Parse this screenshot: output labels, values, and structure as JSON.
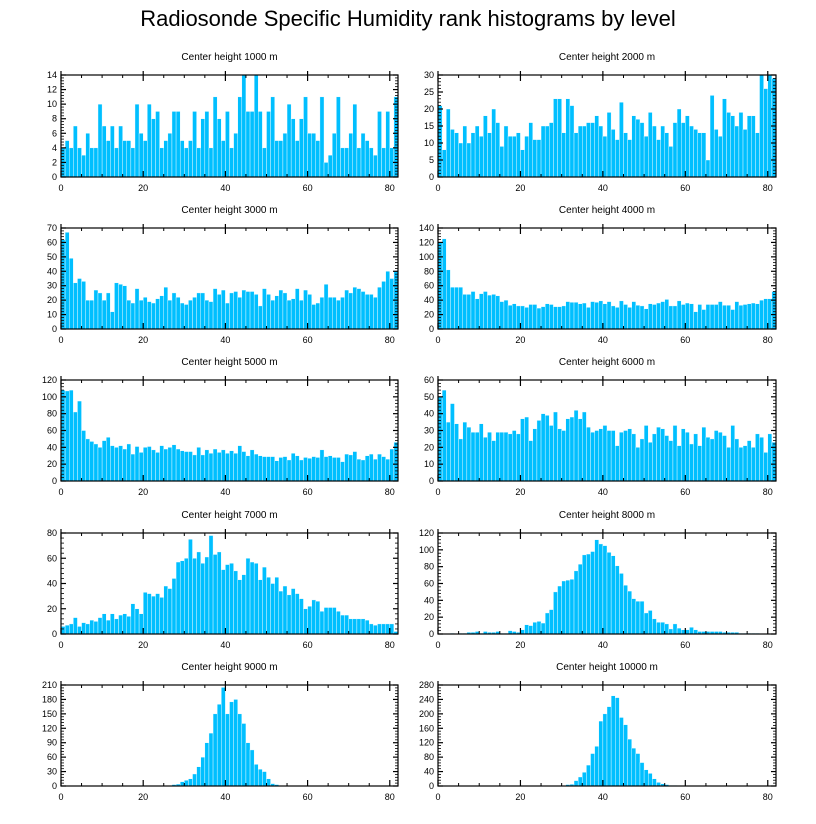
{
  "title": "Radiosonde Specific Humidity rank histograms by level",
  "colors": {
    "bar": "#00BFFF",
    "bar_edge": "#ffffff",
    "axis": "#000000"
  },
  "chart_data": [
    {
      "type": "bar",
      "title": "Center height 1000 m",
      "xlim": [
        0,
        82
      ],
      "ylim": [
        0,
        14
      ],
      "xticks": [
        0,
        20,
        40,
        60,
        80
      ],
      "yticks": [
        0,
        2,
        4,
        6,
        8,
        10,
        12,
        14
      ],
      "values": [
        4,
        5,
        4,
        7,
        4,
        3,
        6,
        4,
        4,
        10,
        7,
        5,
        7,
        4,
        7,
        5,
        5,
        4,
        10,
        6,
        5,
        10,
        8,
        9,
        4,
        5,
        6,
        9,
        9,
        5,
        4,
        5,
        9,
        4,
        8,
        9,
        4,
        11,
        8,
        5,
        9,
        4,
        6,
        11,
        14,
        9,
        9,
        14,
        9,
        4,
        9,
        11,
        5,
        5,
        6,
        10,
        8,
        5,
        8,
        11,
        6,
        6,
        5,
        11,
        2,
        3,
        6,
        11,
        4,
        4,
        6,
        10,
        4,
        6,
        5,
        4,
        3,
        9,
        4,
        9,
        4,
        11,
        11
      ]
    },
    {
      "type": "bar",
      "title": "Center height 2000 m",
      "xlim": [
        0,
        82
      ],
      "ylim": [
        0,
        30
      ],
      "xticks": [
        0,
        20,
        40,
        60,
        80
      ],
      "yticks": [
        0,
        5,
        10,
        15,
        20,
        25,
        30
      ],
      "values": [
        21,
        8,
        20,
        14,
        13,
        10,
        15,
        10,
        13,
        15,
        12,
        18,
        13,
        20,
        16,
        9,
        15,
        12,
        12,
        13,
        8,
        12,
        16,
        11,
        11,
        15,
        15,
        16,
        23,
        23,
        13,
        23,
        21,
        13,
        15,
        15,
        16,
        16,
        18,
        15,
        12,
        19,
        14,
        11,
        22,
        13,
        11,
        18,
        17,
        16,
        12,
        19,
        15,
        11,
        15,
        13,
        9,
        16,
        20,
        16,
        18,
        15,
        14,
        13,
        13,
        5,
        24,
        14,
        12,
        23,
        19,
        18,
        15,
        19,
        14,
        18,
        18,
        13,
        30,
        26,
        30,
        29
      ]
    },
    {
      "type": "bar",
      "title": "Center height 3000 m",
      "xlim": [
        0,
        82
      ],
      "ylim": [
        0,
        70
      ],
      "xticks": [
        0,
        20,
        40,
        60,
        80
      ],
      "yticks": [
        0,
        10,
        20,
        30,
        40,
        50,
        60,
        70
      ],
      "values": [
        62,
        67,
        49,
        32,
        35,
        33,
        20,
        20,
        27,
        25,
        20,
        25,
        12,
        32,
        31,
        30,
        20,
        18,
        28,
        20,
        22,
        19,
        18,
        21,
        23,
        29,
        20,
        25,
        22,
        18,
        17,
        20,
        22,
        25,
        25,
        20,
        19,
        28,
        24,
        27,
        18,
        25,
        26,
        22,
        27,
        26,
        26,
        24,
        16,
        28,
        24,
        20,
        23,
        27,
        25,
        20,
        21,
        28,
        20,
        27,
        24,
        17,
        18,
        22,
        31,
        22,
        22,
        20,
        22,
        27,
        25,
        29,
        28,
        26,
        24,
        24,
        22,
        29,
        33,
        40,
        35,
        40
      ]
    },
    {
      "type": "bar",
      "title": "Center height 4000 m",
      "xlim": [
        0,
        82
      ],
      "ylim": [
        0,
        140
      ],
      "xticks": [
        0,
        20,
        40,
        60,
        80
      ],
      "yticks": [
        0,
        20,
        40,
        60,
        80,
        100,
        120,
        140
      ],
      "values": [
        120,
        125,
        82,
        58,
        58,
        58,
        48,
        48,
        52,
        42,
        49,
        52,
        47,
        48,
        46,
        38,
        40,
        33,
        35,
        32,
        32,
        30,
        34,
        34,
        29,
        31,
        35,
        34,
        31,
        31,
        32,
        38,
        37,
        37,
        35,
        36,
        30,
        38,
        37,
        39,
        35,
        38,
        32,
        30,
        39,
        34,
        30,
        38,
        33,
        32,
        28,
        35,
        34,
        36,
        38,
        41,
        32,
        32,
        39,
        34,
        36,
        35,
        24,
        34,
        27,
        34,
        34,
        34,
        38,
        33,
        33,
        27,
        38,
        33,
        34,
        35,
        36,
        35,
        40,
        42,
        42,
        52,
        44
      ]
    },
    {
      "type": "bar",
      "title": "Center height 5000 m",
      "xlim": [
        0,
        82
      ],
      "ylim": [
        0,
        120
      ],
      "xticks": [
        0,
        20,
        40,
        60,
        80
      ],
      "yticks": [
        0,
        20,
        40,
        60,
        80,
        100,
        120
      ],
      "values": [
        108,
        107,
        108,
        82,
        95,
        60,
        50,
        47,
        44,
        40,
        48,
        52,
        42,
        40,
        42,
        38,
        44,
        32,
        41,
        34,
        40,
        41,
        37,
        34,
        42,
        38,
        40,
        43,
        38,
        36,
        35,
        35,
        31,
        40,
        31,
        37,
        33,
        38,
        34,
        37,
        33,
        36,
        33,
        42,
        35,
        30,
        37,
        32,
        30,
        29,
        29,
        29,
        24,
        28,
        29,
        25,
        33,
        30,
        25,
        28,
        27,
        29,
        28,
        37,
        29,
        30,
        28,
        28,
        23,
        32,
        31,
        35,
        26,
        25,
        30,
        32,
        26,
        32,
        29,
        26,
        38,
        46,
        37,
        38
      ]
    },
    {
      "type": "bar",
      "title": "Center height 6000 m",
      "xlim": [
        0,
        82
      ],
      "ylim": [
        0,
        60
      ],
      "xticks": [
        0,
        20,
        40,
        60,
        80
      ],
      "yticks": [
        0,
        10,
        20,
        30,
        40,
        50,
        60
      ],
      "values": [
        50,
        54,
        35,
        46,
        34,
        25,
        35,
        32,
        29,
        29,
        34,
        26,
        29,
        24,
        29,
        29,
        29,
        28,
        30,
        28,
        37,
        38,
        24,
        31,
        36,
        40,
        39,
        33,
        41,
        31,
        30,
        37,
        38,
        42,
        37,
        41,
        32,
        29,
        30,
        31,
        33,
        30,
        30,
        21,
        29,
        30,
        31,
        28,
        20,
        25,
        33,
        23,
        28,
        32,
        31,
        27,
        24,
        33,
        21,
        31,
        29,
        22,
        28,
        21,
        32,
        26,
        25,
        30,
        29,
        27,
        20,
        33,
        25,
        20,
        21,
        24,
        20,
        28,
        26,
        17,
        28,
        23,
        18
      ]
    },
    {
      "type": "bar",
      "title": "Center height 7000 m",
      "xlim": [
        0,
        82
      ],
      "ylim": [
        0,
        80
      ],
      "xticks": [
        0,
        20,
        40,
        60,
        80
      ],
      "yticks": [
        0,
        20,
        40,
        60,
        80
      ],
      "values": [
        6,
        7,
        8,
        13,
        6,
        9,
        8,
        11,
        10,
        13,
        16,
        11,
        16,
        12,
        15,
        16,
        14,
        24,
        20,
        16,
        33,
        32,
        30,
        32,
        29,
        38,
        36,
        44,
        57,
        58,
        60,
        75,
        60,
        65,
        56,
        61,
        78,
        63,
        65,
        51,
        55,
        56,
        50,
        43,
        47,
        60,
        57,
        56,
        43,
        53,
        45,
        40,
        45,
        34,
        38,
        31,
        36,
        32,
        28,
        20,
        22,
        27,
        26,
        18,
        21,
        21,
        21,
        18,
        15,
        15,
        12,
        12,
        12,
        12,
        11,
        8,
        7,
        8,
        8,
        8,
        8,
        2,
        3,
        3,
        4
      ]
    },
    {
      "type": "bar",
      "title": "Center height 8000 m",
      "xlim": [
        0,
        82
      ],
      "ylim": [
        0,
        120
      ],
      "xticks": [
        0,
        20,
        40,
        60,
        80
      ],
      "yticks": [
        0,
        20,
        40,
        60,
        80,
        100,
        120
      ],
      "values": [
        0,
        0,
        0,
        1,
        0,
        1,
        1,
        2,
        2,
        3,
        1,
        3,
        2,
        2,
        3,
        1,
        1,
        4,
        3,
        2,
        5,
        11,
        10,
        14,
        15,
        13,
        25,
        29,
        50,
        57,
        63,
        64,
        65,
        75,
        83,
        94,
        95,
        98,
        112,
        107,
        105,
        97,
        93,
        81,
        72,
        58,
        51,
        42,
        39,
        39,
        25,
        28,
        18,
        14,
        14,
        12,
        6,
        12,
        7,
        5,
        5,
        8,
        5,
        3,
        3,
        3,
        3,
        3,
        3,
        2,
        2,
        2,
        2,
        1,
        1,
        1,
        1,
        1,
        0,
        0,
        0,
        0,
        0
      ]
    },
    {
      "type": "bar",
      "title": "Center height 9000 m",
      "xlim": [
        0,
        82
      ],
      "ylim": [
        0,
        210
      ],
      "xticks": [
        0,
        20,
        40,
        60,
        80
      ],
      "yticks": [
        0,
        30,
        60,
        90,
        120,
        150,
        180,
        210
      ],
      "values": [
        0,
        0,
        0,
        0,
        0,
        0,
        0,
        0,
        0,
        0,
        0,
        0,
        0,
        0,
        0,
        0,
        0,
        0,
        0,
        0,
        0,
        0,
        0,
        0,
        0,
        0,
        1,
        3,
        4,
        9,
        12,
        15,
        25,
        40,
        60,
        90,
        110,
        150,
        170,
        205,
        150,
        175,
        180,
        150,
        130,
        90,
        75,
        45,
        35,
        30,
        15,
        5,
        3,
        1,
        1,
        0,
        0,
        0,
        0,
        0,
        0,
        0,
        0,
        0,
        0,
        0,
        0,
        0,
        0,
        0,
        0,
        0,
        0,
        0,
        0,
        0,
        0,
        0,
        0,
        0,
        0,
        0,
        0
      ]
    },
    {
      "type": "bar",
      "title": "Center height 10000 m",
      "xlim": [
        0,
        82
      ],
      "ylim": [
        0,
        280
      ],
      "xticks": [
        0,
        20,
        40,
        60,
        80
      ],
      "yticks": [
        0,
        40,
        80,
        120,
        160,
        200,
        240,
        280
      ],
      "values": [
        0,
        0,
        0,
        0,
        0,
        0,
        0,
        0,
        0,
        0,
        0,
        0,
        0,
        0,
        0,
        0,
        0,
        0,
        0,
        0,
        0,
        0,
        0,
        0,
        0,
        0,
        0,
        0,
        0,
        0,
        1,
        4,
        5,
        15,
        25,
        38,
        58,
        90,
        110,
        180,
        200,
        220,
        250,
        245,
        190,
        170,
        130,
        105,
        90,
        65,
        45,
        35,
        20,
        10,
        6,
        4,
        2,
        2,
        1,
        0,
        0,
        0,
        0,
        0,
        0,
        0,
        0,
        0,
        0,
        0,
        0,
        0,
        0,
        0,
        0,
        0,
        0,
        0,
        0,
        0,
        0,
        0,
        0
      ]
    }
  ]
}
